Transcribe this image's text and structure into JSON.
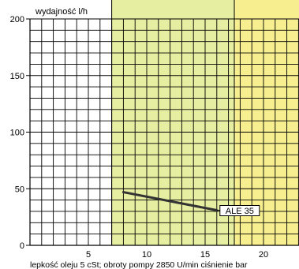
{
  "chart_data": {
    "type": "line",
    "ylabel": "wydajność l/h",
    "xlabel": "lepkość oleju 5 cSt; obroty pompy 2850 U/min   ciśnienie bar",
    "xlim": [
      0,
      24
    ],
    "ylim": [
      0,
      200
    ],
    "grid": true,
    "x_ticks": [
      "5",
      "10",
      "15",
      "20"
    ],
    "y_ticks": [
      "0",
      "50",
      "100",
      "150",
      "200"
    ],
    "bands": [
      {
        "from": 0,
        "to": 7,
        "color": "#ffffff"
      },
      {
        "from": 7,
        "to": 17.5,
        "color": "#e6eea1"
      },
      {
        "from": 17.5,
        "to": 24,
        "color": "#f6ee8f"
      }
    ],
    "series": [
      {
        "name": "ALE 35",
        "color": "#333333",
        "x": [
          8,
          16
        ],
        "y": [
          47,
          31
        ]
      }
    ]
  }
}
